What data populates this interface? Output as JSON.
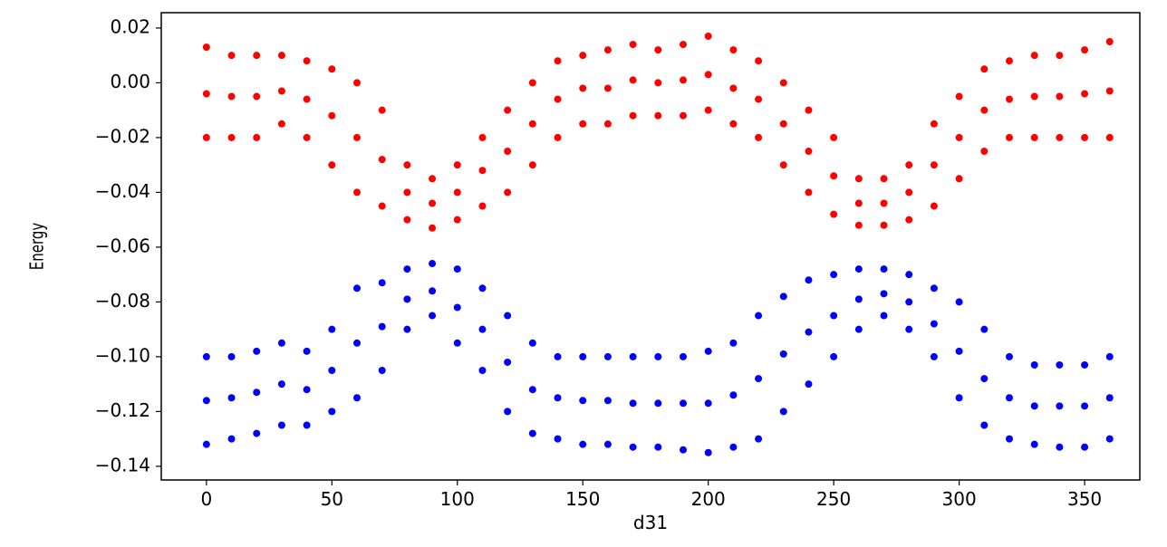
{
  "chart_data": {
    "type": "scatter",
    "xlabel": "d31",
    "ylabel": "Energy",
    "x": [
      0,
      0,
      0,
      10,
      10,
      10,
      20,
      20,
      20,
      30,
      30,
      30,
      40,
      40,
      40,
      50,
      50,
      50,
      60,
      60,
      60,
      70,
      70,
      70,
      80,
      80,
      80,
      90,
      90,
      90,
      100,
      100,
      100,
      110,
      110,
      110,
      120,
      120,
      120,
      130,
      130,
      130,
      140,
      140,
      140,
      150,
      150,
      150,
      160,
      160,
      160,
      170,
      170,
      170,
      180,
      180,
      180,
      190,
      190,
      190,
      200,
      200,
      200,
      210,
      210,
      210,
      220,
      220,
      220,
      230,
      230,
      230,
      240,
      240,
      240,
      250,
      250,
      250,
      260,
      260,
      260,
      270,
      270,
      270,
      280,
      280,
      280,
      290,
      290,
      290,
      300,
      300,
      300,
      310,
      310,
      310,
      320,
      320,
      320,
      330,
      330,
      330,
      340,
      340,
      340,
      350,
      350,
      350,
      360,
      360,
      360
    ],
    "series": [
      {
        "color": "#ff0000",
        "values": [
          -0.02,
          -0.004,
          0.013,
          -0.02,
          -0.005,
          0.01,
          -0.02,
          -0.005,
          0.01,
          -0.015,
          -0.003,
          0.01,
          -0.02,
          -0.006,
          0.008,
          -0.03,
          -0.012,
          0.005,
          -0.04,
          -0.02,
          0,
          -0.045,
          -0.028,
          -0.01,
          -0.05,
          -0.04,
          -0.03,
          -0.053,
          -0.044,
          -0.035,
          -0.05,
          -0.04,
          -0.03,
          -0.045,
          -0.032,
          -0.02,
          -0.04,
          -0.025,
          -0.01,
          -0.03,
          -0.015,
          0,
          -0.02,
          -0.006,
          0.008,
          -0.015,
          -0.002,
          0.01,
          -0.015,
          -0.002,
          0.012,
          -0.012,
          0.001,
          0.014,
          -0.012,
          0,
          0.012,
          -0.012,
          0.001,
          0.014,
          -0.01,
          0.003,
          0.017,
          -0.015,
          -0.002,
          0.012,
          -0.02,
          -0.006,
          0.008,
          -0.03,
          -0.015,
          0,
          -0.04,
          -0.025,
          -0.01,
          -0.048,
          -0.034,
          -0.02,
          -0.052,
          -0.044,
          -0.035,
          -0.052,
          -0.044,
          -0.035,
          -0.05,
          -0.04,
          -0.03,
          -0.045,
          -0.03,
          -0.015,
          -0.035,
          -0.02,
          -0.005,
          -0.025,
          -0.01,
          0.005,
          -0.02,
          -0.006,
          0.008,
          -0.02,
          -0.005,
          0.01,
          -0.02,
          -0.005,
          0.01,
          -0.02,
          -0.004,
          0.012,
          -0.02,
          -0.003,
          0.015
        ]
      },
      {
        "color": "#0000ff",
        "values": [
          -0.132,
          -0.116,
          -0.1,
          -0.13,
          -0.115,
          -0.1,
          -0.128,
          -0.113,
          -0.098,
          -0.125,
          -0.11,
          -0.095,
          -0.125,
          -0.112,
          -0.098,
          -0.12,
          -0.105,
          -0.09,
          -0.115,
          -0.095,
          -0.075,
          -0.105,
          -0.089,
          -0.073,
          -0.09,
          -0.079,
          -0.068,
          -0.085,
          -0.076,
          -0.066,
          -0.095,
          -0.082,
          -0.068,
          -0.105,
          -0.09,
          -0.075,
          -0.12,
          -0.102,
          -0.085,
          -0.128,
          -0.112,
          -0.095,
          -0.13,
          -0.115,
          -0.1,
          -0.132,
          -0.116,
          -0.1,
          -0.132,
          -0.116,
          -0.1,
          -0.133,
          -0.117,
          -0.1,
          -0.133,
          -0.117,
          -0.1,
          -0.134,
          -0.117,
          -0.1,
          -0.135,
          -0.117,
          -0.098,
          -0.133,
          -0.114,
          -0.095,
          -0.13,
          -0.108,
          -0.085,
          -0.12,
          -0.099,
          -0.078,
          -0.11,
          -0.091,
          -0.072,
          -0.1,
          -0.085,
          -0.07,
          -0.09,
          -0.079,
          -0.068,
          -0.085,
          -0.077,
          -0.068,
          -0.09,
          -0.08,
          -0.07,
          -0.1,
          -0.088,
          -0.075,
          -0.115,
          -0.098,
          -0.08,
          -0.125,
          -0.108,
          -0.09,
          -0.13,
          -0.115,
          -0.1,
          -0.132,
          -0.118,
          -0.103,
          -0.133,
          -0.118,
          -0.103,
          -0.133,
          -0.118,
          -0.103,
          -0.13,
          -0.115,
          -0.1
        ]
      }
    ],
    "xlim": [
      -18,
      372
    ],
    "ylim": [
      -0.145,
      0.0256
    ],
    "xticks": [
      0,
      50,
      100,
      150,
      200,
      250,
      300,
      350
    ],
    "yticks": [
      {
        "value": -0.14,
        "label": "−0.14"
      },
      {
        "value": -0.12,
        "label": "−0.12"
      },
      {
        "value": -0.1,
        "label": "−0.10"
      },
      {
        "value": -0.08,
        "label": "−0.08"
      },
      {
        "value": -0.06,
        "label": "−0.06"
      },
      {
        "value": -0.04,
        "label": "−0.04"
      },
      {
        "value": -0.02,
        "label": "−0.02"
      },
      {
        "value": 0,
        "label": "0.00"
      },
      0.02
    ]
  }
}
